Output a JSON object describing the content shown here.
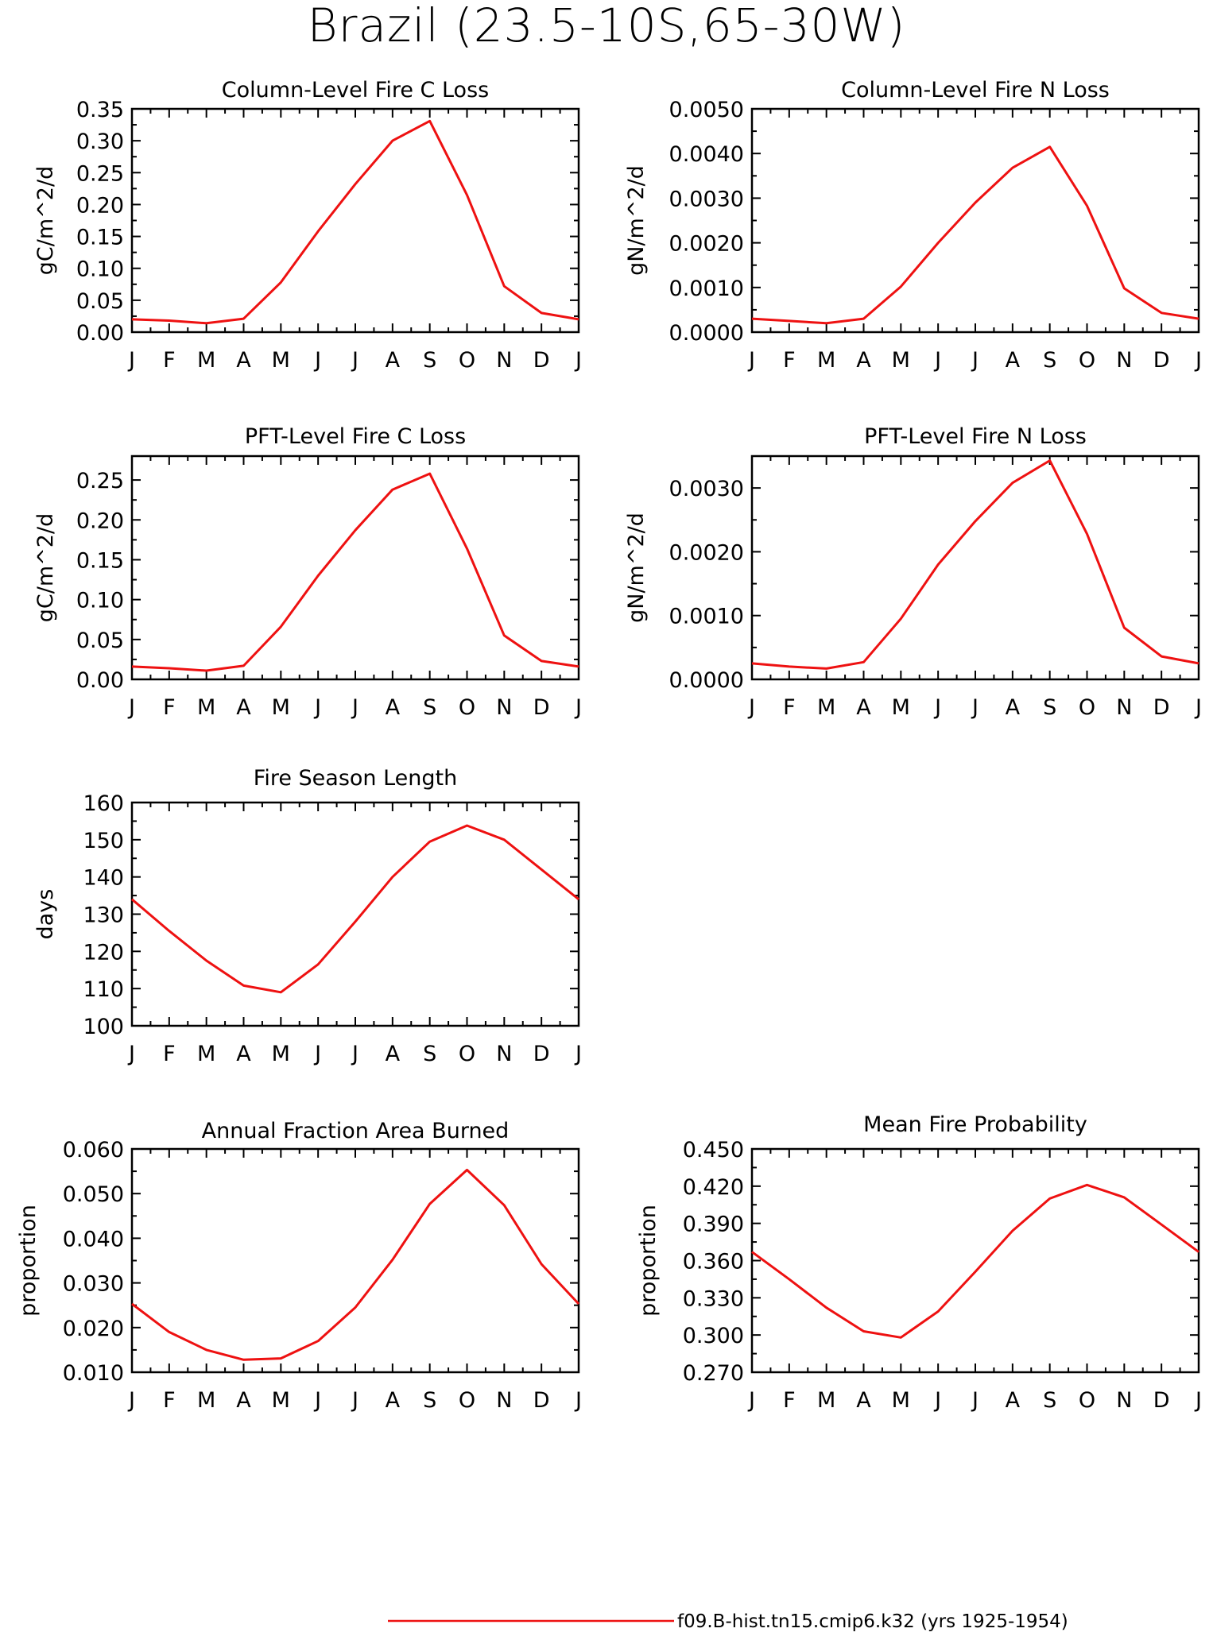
{
  "title": "Brazil (23.5-10S,65-30W)",
  "chart_data": [
    {
      "type": "line",
      "title": "Column-Level Fire C Loss",
      "ylabel": "gC/m^2/d",
      "x": [
        "J",
        "F",
        "M",
        "A",
        "M",
        "J",
        "J",
        "A",
        "S",
        "O",
        "N",
        "D",
        "J"
      ],
      "ylim": [
        0,
        0.35
      ],
      "yticks": [
        "0.00",
        "0.05",
        "0.10",
        "0.15",
        "0.20",
        "0.25",
        "0.30",
        "0.35"
      ],
      "series": [
        {
          "values": [
            0.02,
            0.018,
            0.014,
            0.021,
            0.078,
            0.158,
            0.232,
            0.3,
            0.331,
            0.215,
            0.072,
            0.03,
            0.02
          ]
        }
      ]
    },
    {
      "type": "line",
      "title": "Column-Level Fire N Loss",
      "ylabel": "gN/m^2/d",
      "x": [
        "J",
        "F",
        "M",
        "A",
        "M",
        "J",
        "J",
        "A",
        "S",
        "O",
        "N",
        "D",
        "J"
      ],
      "ylim": [
        0,
        0.005
      ],
      "yticks": [
        "0.0000",
        "0.0010",
        "0.0020",
        "0.0030",
        "0.0040",
        "0.0050"
      ],
      "series": [
        {
          "values": [
            0.0003,
            0.00025,
            0.0002,
            0.0003,
            0.00102,
            0.002,
            0.0029,
            0.00368,
            0.00415,
            0.00283,
            0.00098,
            0.00043,
            0.0003
          ]
        }
      ]
    },
    {
      "type": "line",
      "title": "PFT-Level Fire C Loss",
      "ylabel": "gC/m^2/d",
      "x": [
        "J",
        "F",
        "M",
        "A",
        "M",
        "J",
        "J",
        "A",
        "S",
        "O",
        "N",
        "D",
        "J"
      ],
      "ylim": [
        0,
        0.28
      ],
      "yticks": [
        "0.00",
        "0.05",
        "0.10",
        "0.15",
        "0.20",
        "0.25"
      ],
      "series": [
        {
          "values": [
            0.016,
            0.014,
            0.011,
            0.017,
            0.066,
            0.13,
            0.187,
            0.238,
            0.258,
            0.164,
            0.055,
            0.023,
            0.016
          ]
        }
      ]
    },
    {
      "type": "line",
      "title": "PFT-Level Fire N Loss",
      "ylabel": "gN/m^2/d",
      "x": [
        "J",
        "F",
        "M",
        "A",
        "M",
        "J",
        "J",
        "A",
        "S",
        "O",
        "N",
        "D",
        "J"
      ],
      "ylim": [
        0,
        0.0035
      ],
      "yticks": [
        "0.0000",
        "0.0010",
        "0.0020",
        "0.0030"
      ],
      "series": [
        {
          "values": [
            0.00025,
            0.0002,
            0.00017,
            0.00027,
            0.00095,
            0.0018,
            0.00248,
            0.00308,
            0.00343,
            0.00228,
            0.00081,
            0.00036,
            0.00025
          ]
        }
      ]
    },
    {
      "type": "line",
      "title": "Fire Season Length",
      "ylabel": "days",
      "x": [
        "J",
        "F",
        "M",
        "A",
        "M",
        "J",
        "J",
        "A",
        "S",
        "O",
        "N",
        "D",
        "J"
      ],
      "ylim": [
        100,
        160
      ],
      "yticks": [
        "100",
        "110",
        "120",
        "130",
        "140",
        "150",
        "160"
      ],
      "series": [
        {
          "values": [
            134.0,
            125.5,
            117.5,
            110.8,
            109.0,
            116.5,
            128.0,
            140.0,
            149.5,
            153.8,
            150.0,
            142.0,
            134.0
          ]
        }
      ]
    },
    {
      "type": "line",
      "title": "Annual Fraction Area Burned",
      "ylabel": "proportion",
      "x": [
        "J",
        "F",
        "M",
        "A",
        "M",
        "J",
        "J",
        "A",
        "S",
        "O",
        "N",
        "D",
        "J"
      ],
      "ylim": [
        0.01,
        0.06
      ],
      "yticks": [
        "0.010",
        "0.020",
        "0.030",
        "0.040",
        "0.050",
        "0.060"
      ],
      "series": [
        {
          "values": [
            0.0253,
            0.019,
            0.015,
            0.0128,
            0.0131,
            0.017,
            0.0245,
            0.0352,
            0.0477,
            0.0553,
            0.0474,
            0.0342,
            0.0253
          ]
        }
      ]
    },
    {
      "type": "line",
      "title": "Mean Fire Probability",
      "ylabel": "proportion",
      "x": [
        "J",
        "F",
        "M",
        "A",
        "M",
        "J",
        "J",
        "A",
        "S",
        "O",
        "N",
        "D",
        "J"
      ],
      "ylim": [
        0.27,
        0.45
      ],
      "yticks": [
        "0.270",
        "0.300",
        "0.330",
        "0.360",
        "0.390",
        "0.420",
        "0.450"
      ],
      "series": [
        {
          "values": [
            0.367,
            0.345,
            0.322,
            0.303,
            0.298,
            0.319,
            0.351,
            0.384,
            0.41,
            0.421,
            0.411,
            0.389,
            0.367
          ]
        }
      ]
    }
  ],
  "legend": {
    "label": "f09.B-hist.tn15.cmip6.k32 (yrs 1925-1954)",
    "color": "#ee1111"
  }
}
